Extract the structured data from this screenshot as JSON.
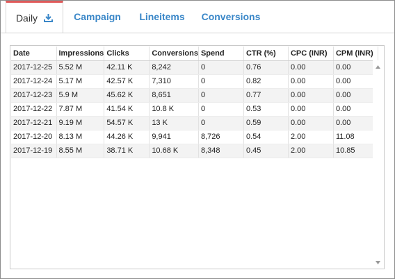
{
  "tabs": [
    {
      "label": "Daily",
      "active": true,
      "icon": "download-icon"
    },
    {
      "label": "Campaign",
      "active": false
    },
    {
      "label": "Lineitems",
      "active": false
    },
    {
      "label": "Conversions",
      "active": false
    }
  ],
  "colors": {
    "active_tab_border": "#e05a5a",
    "link": "#3a87c8",
    "row_alt": "#f3f3f3"
  },
  "table": {
    "headers": [
      "Date",
      "Impressions",
      "Clicks",
      "Conversions",
      "Spend",
      "CTR (%)",
      "CPC (INR)",
      "CPM (INR)"
    ],
    "rows": [
      [
        "2017-12-25",
        "5.52 M",
        "42.11 K",
        "8,242",
        "0",
        "0.76",
        "0.00",
        "0.00"
      ],
      [
        "2017-12-24",
        "5.17 M",
        "42.57 K",
        "7,310",
        "0",
        "0.82",
        "0.00",
        "0.00"
      ],
      [
        "2017-12-23",
        "5.9 M",
        "45.62 K",
        "8,651",
        "0",
        "0.77",
        "0.00",
        "0.00"
      ],
      [
        "2017-12-22",
        "7.87 M",
        "41.54 K",
        "10.8 K",
        "0",
        "0.53",
        "0.00",
        "0.00"
      ],
      [
        "2017-12-21",
        "9.19 M",
        "54.57 K",
        "13 K",
        "0",
        "0.59",
        "0.00",
        "0.00"
      ],
      [
        "2017-12-20",
        "8.13 M",
        "44.26 K",
        "9,941",
        "8,726",
        "0.54",
        "2.00",
        "11.08"
      ],
      [
        "2017-12-19",
        "8.55 M",
        "38.71 K",
        "10.68 K",
        "8,348",
        "0.45",
        "2.00",
        "10.85"
      ]
    ]
  }
}
